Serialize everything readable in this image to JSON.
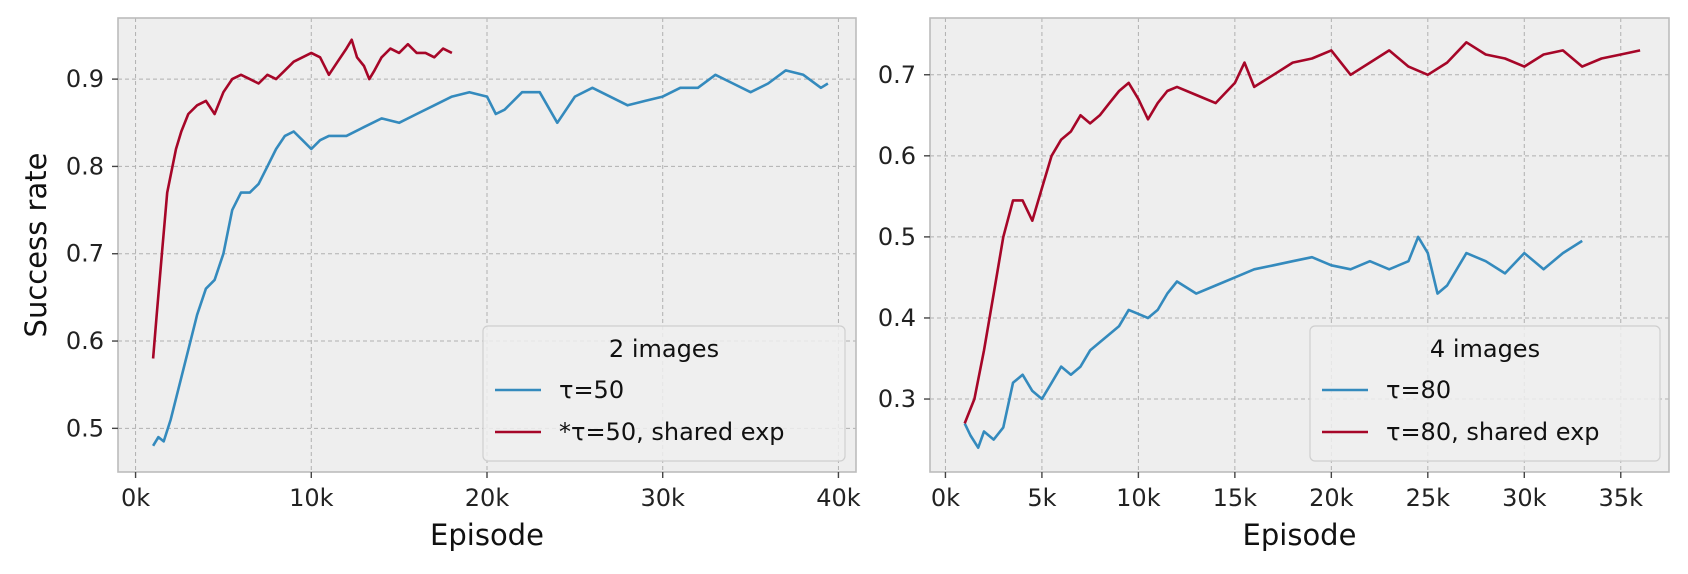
{
  "chart_data": [
    {
      "type": "line",
      "xlabel": "Episode",
      "ylabel": "Success rate",
      "xlim": [
        -1000,
        41000
      ],
      "ylim": [
        0.45,
        0.97
      ],
      "xticks": [
        0,
        10000,
        20000,
        30000,
        40000
      ],
      "xtick_labels": [
        "0k",
        "10k",
        "20k",
        "30k",
        "40k"
      ],
      "yticks": [
        0.5,
        0.6,
        0.7,
        0.8,
        0.9
      ],
      "ytick_labels": [
        "0.5",
        "0.6",
        "0.7",
        "0.8",
        "0.9"
      ],
      "grid": true,
      "legend_title": "2 images",
      "legend_position": "lower right",
      "series": [
        {
          "name": "τ=50",
          "color": "#348abd",
          "x": [
            1000,
            1300,
            1600,
            2000,
            2500,
            3000,
            3500,
            4000,
            4500,
            5000,
            5500,
            6000,
            6500,
            7000,
            7500,
            8000,
            8500,
            9000,
            9500,
            10000,
            10500,
            11000,
            12000,
            13000,
            14000,
            15000,
            16000,
            17000,
            18000,
            19000,
            20000,
            20500,
            21000,
            22000,
            23000,
            24000,
            25000,
            26000,
            27000,
            28000,
            29000,
            30000,
            31000,
            32000,
            33000,
            34000,
            35000,
            36000,
            37000,
            38000,
            39000,
            39400
          ],
          "y": [
            0.48,
            0.49,
            0.485,
            0.51,
            0.55,
            0.59,
            0.63,
            0.66,
            0.67,
            0.7,
            0.75,
            0.77,
            0.77,
            0.78,
            0.8,
            0.82,
            0.835,
            0.84,
            0.83,
            0.82,
            0.83,
            0.835,
            0.835,
            0.845,
            0.855,
            0.85,
            0.86,
            0.87,
            0.88,
            0.885,
            0.88,
            0.86,
            0.865,
            0.885,
            0.885,
            0.85,
            0.88,
            0.89,
            0.88,
            0.87,
            0.875,
            0.88,
            0.89,
            0.89,
            0.905,
            0.895,
            0.885,
            0.895,
            0.91,
            0.905,
            0.89,
            0.895
          ]
        },
        {
          "name": "*τ=50, shared exp",
          "color": "#a60628",
          "x": [
            1000,
            1200,
            1500,
            1800,
            2000,
            2300,
            2600,
            3000,
            3500,
            4000,
            4500,
            5000,
            5500,
            6000,
            6500,
            7000,
            7500,
            8000,
            8500,
            9000,
            9500,
            10000,
            10500,
            11000,
            11500,
            12000,
            12300,
            12600,
            13000,
            13300,
            13600,
            14000,
            14500,
            15000,
            15500,
            16000,
            16500,
            17000,
            17500,
            18000
          ],
          "y": [
            0.58,
            0.63,
            0.7,
            0.77,
            0.79,
            0.82,
            0.84,
            0.86,
            0.87,
            0.875,
            0.86,
            0.885,
            0.9,
            0.905,
            0.9,
            0.895,
            0.905,
            0.9,
            0.91,
            0.92,
            0.925,
            0.93,
            0.925,
            0.905,
            0.92,
            0.935,
            0.945,
            0.925,
            0.915,
            0.9,
            0.91,
            0.925,
            0.935,
            0.93,
            0.94,
            0.93,
            0.93,
            0.925,
            0.935,
            0.93
          ]
        }
      ]
    },
    {
      "type": "line",
      "xlabel": "Episode",
      "ylabel": "",
      "xlim": [
        -800,
        37500
      ],
      "ylim": [
        0.21,
        0.77
      ],
      "xticks": [
        0,
        5000,
        10000,
        15000,
        20000,
        25000,
        30000,
        35000
      ],
      "xtick_labels": [
        "0k",
        "5k",
        "10k",
        "15k",
        "20k",
        "25k",
        "30k",
        "35k"
      ],
      "yticks": [
        0.3,
        0.4,
        0.5,
        0.6,
        0.7
      ],
      "ytick_labels": [
        "0.3",
        "0.4",
        "0.5",
        "0.6",
        "0.7"
      ],
      "grid": true,
      "legend_title": "4 images",
      "legend_position": "lower right",
      "series": [
        {
          "name": "τ=80",
          "color": "#348abd",
          "x": [
            1000,
            1300,
            1700,
            2000,
            2500,
            3000,
            3500,
            4000,
            4500,
            5000,
            5500,
            6000,
            6500,
            7000,
            7500,
            8000,
            8500,
            9000,
            9500,
            10000,
            10500,
            11000,
            11500,
            12000,
            13000,
            14000,
            15000,
            16000,
            17000,
            18000,
            19000,
            20000,
            21000,
            22000,
            23000,
            24000,
            24500,
            25000,
            25500,
            26000,
            27000,
            28000,
            29000,
            30000,
            31000,
            32000,
            33000
          ],
          "y": [
            0.27,
            0.255,
            0.24,
            0.26,
            0.25,
            0.265,
            0.32,
            0.33,
            0.31,
            0.3,
            0.32,
            0.34,
            0.33,
            0.34,
            0.36,
            0.37,
            0.38,
            0.39,
            0.41,
            0.405,
            0.4,
            0.41,
            0.43,
            0.445,
            0.43,
            0.44,
            0.45,
            0.46,
            0.465,
            0.47,
            0.475,
            0.465,
            0.46,
            0.47,
            0.46,
            0.47,
            0.5,
            0.48,
            0.43,
            0.44,
            0.48,
            0.47,
            0.455,
            0.48,
            0.46,
            0.48,
            0.495
          ]
        },
        {
          "name": "τ=80, shared exp",
          "color": "#a60628",
          "x": [
            1000,
            1500,
            2000,
            2500,
            3000,
            3500,
            4000,
            4500,
            5000,
            5500,
            6000,
            6500,
            7000,
            7500,
            8000,
            8500,
            9000,
            9500,
            10000,
            10500,
            11000,
            11500,
            12000,
            13000,
            14000,
            15000,
            15500,
            16000,
            17000,
            18000,
            19000,
            20000,
            21000,
            22000,
            23000,
            24000,
            25000,
            26000,
            27000,
            28000,
            29000,
            30000,
            31000,
            32000,
            33000,
            34000,
            35000,
            36000
          ],
          "y": [
            0.27,
            0.3,
            0.36,
            0.43,
            0.5,
            0.545,
            0.545,
            0.52,
            0.56,
            0.6,
            0.62,
            0.63,
            0.65,
            0.64,
            0.65,
            0.665,
            0.68,
            0.69,
            0.67,
            0.645,
            0.665,
            0.68,
            0.685,
            0.675,
            0.665,
            0.69,
            0.715,
            0.685,
            0.7,
            0.715,
            0.72,
            0.73,
            0.7,
            0.715,
            0.73,
            0.71,
            0.7,
            0.715,
            0.74,
            0.725,
            0.72,
            0.71,
            0.725,
            0.73,
            0.71,
            0.72,
            0.725,
            0.73
          ]
        }
      ]
    }
  ]
}
